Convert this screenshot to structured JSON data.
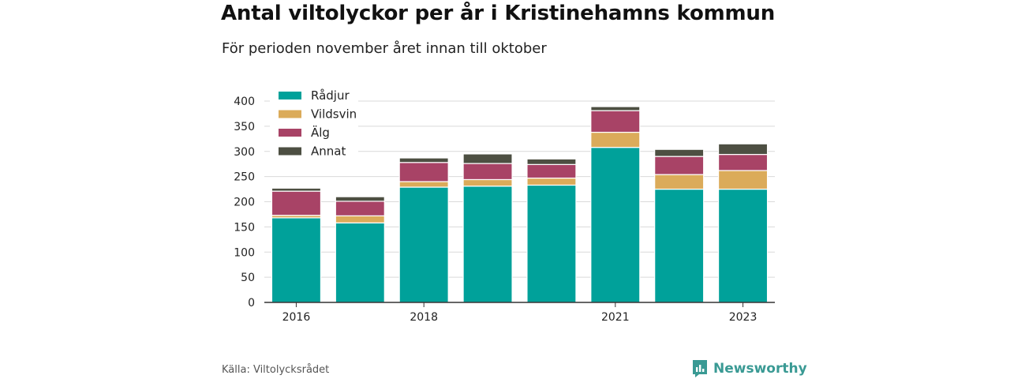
{
  "title": "Antal viltolyckor per år i Kristinehamns kommun",
  "subtitle": "För perioden november året innan till oktober",
  "source": "Källa: Viltolycksrådet",
  "brand": "Newsworthy",
  "chart_data": {
    "type": "bar",
    "stacked": true,
    "categories": [
      "2016",
      "2017",
      "2018",
      "2019",
      "2020",
      "2021",
      "2022",
      "2023"
    ],
    "x_tick_labels": [
      "2016",
      "",
      "2018",
      "",
      "",
      "2021",
      "",
      "2023"
    ],
    "series": [
      {
        "name": "Rådjur",
        "color": "#00a19a",
        "values": [
          168,
          158,
          229,
          231,
          233,
          308,
          225,
          225
        ]
      },
      {
        "name": "Vildsvin",
        "color": "#dbab5a",
        "values": [
          5,
          14,
          11,
          13,
          14,
          30,
          29,
          37
        ]
      },
      {
        "name": "Älg",
        "color": "#a84366",
        "values": [
          48,
          29,
          38,
          32,
          27,
          43,
          36,
          32
        ]
      },
      {
        "name": "Annat",
        "color": "#4d4f42",
        "values": [
          6,
          9,
          9,
          19,
          11,
          8,
          14,
          21
        ]
      }
    ],
    "ylim": [
      0,
      400
    ],
    "yticks": [
      0,
      50,
      100,
      150,
      200,
      250,
      300,
      350,
      400
    ],
    "grid": true,
    "legend_position": "top-left"
  }
}
